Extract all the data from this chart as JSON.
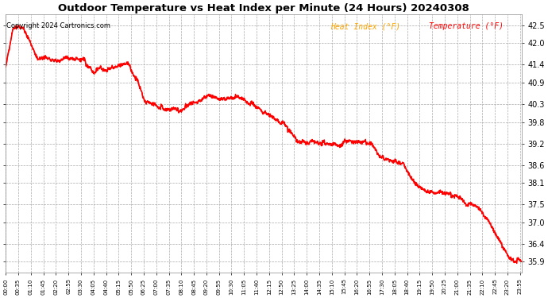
{
  "title": "Outdoor Temperature vs Heat Index per Minute (24 Hours) 20240308",
  "copyright": "Copyright 2024 Cartronics.com",
  "legend_labels": [
    "Heat Index (°F)",
    "Temperature (°F)"
  ],
  "bg_color": "white",
  "plot_bg_color": "white",
  "grid_color": "#aaaaaa",
  "text_color": "black",
  "title_color": "black",
  "copyright_color": "black",
  "legend_color1": "orange",
  "legend_color2": "red",
  "yticks": [
    35.9,
    36.4,
    37.0,
    37.5,
    38.1,
    38.6,
    39.2,
    39.8,
    40.3,
    40.9,
    41.4,
    42.0,
    42.5
  ],
  "ymin": 35.6,
  "ymax": 42.8,
  "line_color1": "red",
  "line_color2": "red",
  "line_width": 1.0,
  "keypoints_t": [
    0,
    20,
    45,
    70,
    90,
    120,
    150,
    175,
    200,
    220,
    245,
    265,
    290,
    315,
    340,
    360,
    390,
    420,
    450,
    480,
    510,
    540,
    570,
    600,
    630,
    660,
    690,
    720,
    750,
    780,
    810,
    840,
    870,
    900,
    930,
    960,
    990,
    1020,
    1050,
    1080,
    1110,
    1140,
    1170,
    1200,
    1230,
    1260,
    1290,
    1320,
    1350,
    1380,
    1410,
    1430,
    1439
  ],
  "keypoints_v": [
    41.3,
    42.4,
    42.5,
    42.0,
    41.6,
    41.55,
    41.5,
    41.6,
    41.55,
    41.5,
    41.2,
    41.3,
    41.25,
    41.4,
    41.45,
    41.1,
    40.4,
    40.3,
    40.15,
    40.1,
    40.3,
    40.4,
    40.5,
    40.45,
    40.5,
    40.45,
    40.3,
    40.1,
    39.9,
    39.7,
    39.3,
    39.2,
    39.25,
    39.2,
    39.15,
    39.3,
    39.25,
    39.2,
    38.8,
    38.7,
    38.6,
    38.1,
    37.9,
    37.85,
    37.8,
    37.75,
    37.5,
    37.4,
    37.0,
    36.4,
    35.95,
    35.92,
    35.9
  ]
}
